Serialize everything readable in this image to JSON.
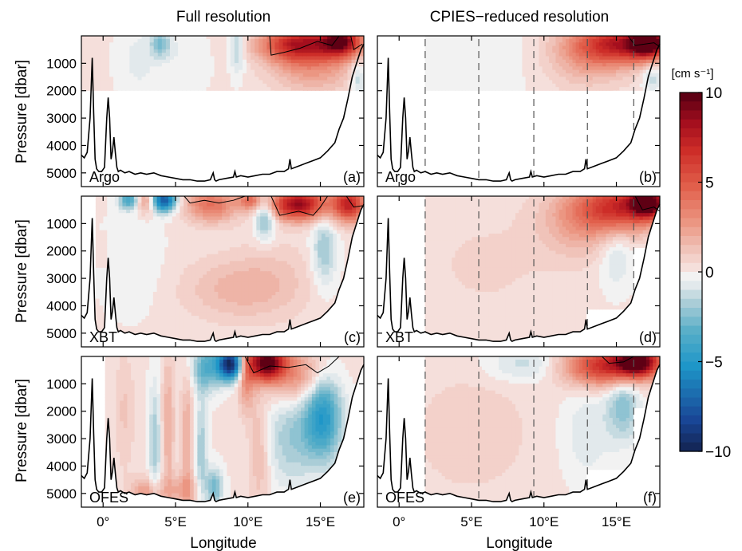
{
  "chart_data": {
    "type": "heatmap",
    "column_titles": [
      "Full resolution",
      "CPIES−reduced resolution"
    ],
    "xlabel": "Longitude",
    "ylabel": "Pressure [dbar]",
    "xlim": [
      -1.5,
      18
    ],
    "ylim": [
      5500,
      0
    ],
    "x_ticks": [
      0,
      5,
      10,
      15
    ],
    "x_tick_labels": [
      "0°",
      "5°E",
      "10°E",
      "15°E"
    ],
    "y_ticks": [
      1000,
      2000,
      3000,
      4000,
      5000
    ],
    "y_tick_labels": [
      "1000",
      "2000",
      "3000",
      "4000",
      "5000"
    ],
    "cpies_longitudes": [
      1.8,
      5.5,
      9.3,
      13.0,
      16.2
    ],
    "bottom_topography": {
      "lon": [
        -1.5,
        -1.3,
        -1.1,
        -0.9,
        -0.75,
        -0.65,
        -0.55,
        -0.45,
        -0.3,
        -0.1,
        0.1,
        0.25,
        0.35,
        0.45,
        0.55,
        0.65,
        0.75,
        0.85,
        0.95,
        1.05,
        1.2,
        1.5,
        1.8,
        2.2,
        2.6,
        3.0,
        3.5,
        4.0,
        4.5,
        5.0,
        5.5,
        6.0,
        6.5,
        7.0,
        7.4,
        7.6,
        7.7,
        7.8,
        8.0,
        8.5,
        9.0,
        9.1,
        9.2,
        9.5,
        10.0,
        10.5,
        11.0,
        11.5,
        12.0,
        12.5,
        12.8,
        12.9,
        13.0,
        13.5,
        14.0,
        14.5,
        15.0,
        15.5,
        16.0,
        16.3,
        16.6,
        16.9,
        17.2,
        17.5,
        17.8,
        18.0
      ],
      "depth": [
        4350,
        4450,
        4250,
        3000,
        800,
        2800,
        4500,
        4850,
        4950,
        4950,
        4800,
        3000,
        2250,
        3000,
        4500,
        4200,
        3700,
        4300,
        4800,
        4950,
        4900,
        5000,
        4950,
        5050,
        5000,
        5050,
        5000,
        5100,
        5150,
        5200,
        5250,
        5250,
        5300,
        5300,
        5250,
        5000,
        5250,
        5300,
        5250,
        5200,
        5150,
        4950,
        5150,
        5100,
        5150,
        5100,
        5050,
        5050,
        4950,
        4950,
        4850,
        4500,
        4850,
        4750,
        4650,
        4550,
        4450,
        4200,
        3900,
        3400,
        3000,
        2300,
        1500,
        1000,
        500,
        300
      ]
    },
    "colorbar": {
      "unit_label": "[cm s⁻¹]",
      "range": [
        -10,
        10
      ],
      "tick_labels": [
        "10",
        "5",
        "0",
        "−5",
        "−10"
      ],
      "tick_values": [
        10,
        5,
        0,
        -5,
        -10
      ]
    },
    "panels": [
      {
        "id": "a",
        "letter": "(a)",
        "tag": "Argo",
        "column": 0,
        "row": 0,
        "data_bottom": 2000,
        "contour_lines": [
          [
            [
              11.5,
              0
            ],
            [
              11.6,
              700
            ],
            [
              12.5,
              600
            ],
            [
              13.6,
              450
            ],
            [
              14.8,
              200
            ],
            [
              15.8,
              350
            ],
            [
              16.3,
              0
            ]
          ],
          [
            [
              17.1,
              0
            ],
            [
              17.3,
              500
            ],
            [
              17.9,
              300
            ]
          ]
        ],
        "blobs": [
          {
            "lon": 4.0,
            "p": 300,
            "v": -2.5,
            "sx": 0.5,
            "sy": 350
          },
          {
            "lon": 9.3,
            "p": 400,
            "v": -2.0,
            "sx": 0.35,
            "sy": 700
          },
          {
            "lon": 2.5,
            "p": 900,
            "v": -0.8,
            "sx": 1.0,
            "sy": 900
          },
          {
            "lon": 5.8,
            "p": 1000,
            "v": -0.6,
            "sx": 1.0,
            "sy": 800
          },
          {
            "lon": 13.5,
            "p": 300,
            "v": 7.0,
            "sx": 1.8,
            "sy": 450
          },
          {
            "lon": 16.5,
            "p": 200,
            "v": 8.0,
            "sx": 1.0,
            "sy": 400
          },
          {
            "lon": 14.5,
            "p": 1100,
            "v": 2.5,
            "sx": 2.0,
            "sy": 700
          },
          {
            "lon": 17.6,
            "p": 1500,
            "v": -1.8,
            "sx": 0.35,
            "sy": 500
          }
        ]
      },
      {
        "id": "b",
        "letter": "(b)",
        "tag": "Argo",
        "column": 1,
        "row": 0,
        "data_bottom": 2000,
        "contour_lines": [
          [
            [
              15.8,
              0
            ],
            [
              16.3,
              350
            ],
            [
              17.6,
              250
            ],
            [
              18.0,
              400
            ]
          ]
        ],
        "blobs": [
          {
            "lon": 15.5,
            "p": 300,
            "v": 7.0,
            "sx": 2.2,
            "sy": 500
          },
          {
            "lon": 17.2,
            "p": 250,
            "v": 8.5,
            "sx": 0.8,
            "sy": 350
          },
          {
            "lon": 13.0,
            "p": 800,
            "v": 2.0,
            "sx": 2.0,
            "sy": 800
          },
          {
            "lon": 5.5,
            "p": 800,
            "v": -0.4,
            "sx": 3.5,
            "sy": 1200
          },
          {
            "lon": 17.5,
            "p": 1500,
            "v": -1.5,
            "sx": 0.5,
            "sy": 400
          }
        ]
      },
      {
        "id": "c",
        "letter": "(c)",
        "tag": "XBT",
        "column": 0,
        "row": 1,
        "data_bottom": "topography",
        "contour_lines": [
          [
            [
              5.6,
              0
            ],
            [
              6.0,
              250
            ],
            [
              7.0,
              150
            ],
            [
              8.0,
              250
            ],
            [
              9.0,
              150
            ],
            [
              9.8,
              0
            ]
          ],
          [
            [
              11.6,
              0
            ],
            [
              12.2,
              700
            ],
            [
              13.5,
              550
            ],
            [
              14.5,
              700
            ],
            [
              15.0,
              400
            ],
            [
              15.5,
              0
            ]
          ],
          [
            [
              16.8,
              0
            ],
            [
              17.3,
              400
            ],
            [
              17.9,
              350
            ]
          ]
        ],
        "blobs": [
          {
            "lon": 1.8,
            "p": 150,
            "v": -4.0,
            "sx": 0.5,
            "sy": 250
          },
          {
            "lon": 4.2,
            "p": 150,
            "v": -8.0,
            "sx": 0.6,
            "sy": 300
          },
          {
            "lon": 3.0,
            "p": 200,
            "v": 3.0,
            "sx": 0.5,
            "sy": 300
          },
          {
            "lon": 7.5,
            "p": 300,
            "v": 4.0,
            "sx": 1.3,
            "sy": 450
          },
          {
            "lon": 10.2,
            "p": 150,
            "v": 3.5,
            "sx": 0.6,
            "sy": 250
          },
          {
            "lon": 11.2,
            "p": 700,
            "v": -3.0,
            "sx": 0.5,
            "sy": 600
          },
          {
            "lon": 13.5,
            "p": 300,
            "v": 8.5,
            "sx": 1.4,
            "sy": 400
          },
          {
            "lon": 17.0,
            "p": 300,
            "v": 7.0,
            "sx": 0.8,
            "sy": 450
          },
          {
            "lon": 15.3,
            "p": 2000,
            "v": -2.2,
            "sx": 0.6,
            "sy": 900
          },
          {
            "lon": 9.0,
            "p": 3400,
            "v": 1.5,
            "sx": 2.5,
            "sy": 800
          },
          {
            "lon": 2.0,
            "p": 2500,
            "v": -0.6,
            "sx": 1.5,
            "sy": 1200
          },
          {
            "lon": 12.0,
            "p": 3000,
            "v": 0.8,
            "sx": 2.0,
            "sy": 1000
          }
        ]
      },
      {
        "id": "d",
        "letter": "(d)",
        "tag": "XBT",
        "column": 1,
        "row": 1,
        "data_bottom": "stepped",
        "contour_lines": [
          [
            [
              16.3,
              0
            ],
            [
              16.8,
              500
            ],
            [
              17.6,
              400
            ],
            [
              18.0,
              550
            ]
          ]
        ],
        "blobs": [
          {
            "lon": 15.5,
            "p": 400,
            "v": 6.5,
            "sx": 2.2,
            "sy": 600
          },
          {
            "lon": 17.2,
            "p": 250,
            "v": 8.0,
            "sx": 0.8,
            "sy": 350
          },
          {
            "lon": 12.5,
            "p": 1000,
            "v": 2.0,
            "sx": 2.0,
            "sy": 900
          },
          {
            "lon": 15.0,
            "p": 2200,
            "v": -1.3,
            "sx": 0.8,
            "sy": 800
          },
          {
            "lon": 6.0,
            "p": 2500,
            "v": 0.5,
            "sx": 3.5,
            "sy": 1500
          }
        ]
      },
      {
        "id": "e",
        "letter": "(e)",
        "tag": "OFES",
        "column": 0,
        "row": 2,
        "data_bottom": "topography",
        "contour_lines": [
          [
            [
              9.8,
              0
            ],
            [
              10.4,
              600
            ],
            [
              11.5,
              350
            ],
            [
              12.8,
              400
            ],
            [
              14.0,
              300
            ],
            [
              14.8,
              600
            ],
            [
              15.6,
              350
            ],
            [
              16.3,
              0
            ]
          ]
        ],
        "blobs": [
          {
            "lon": 8.8,
            "p": 300,
            "v": -10.0,
            "sx": 0.6,
            "sy": 400
          },
          {
            "lon": 7.2,
            "p": 400,
            "v": -3.5,
            "sx": 0.7,
            "sy": 600
          },
          {
            "lon": 11.3,
            "p": 250,
            "v": 10.0,
            "sx": 0.9,
            "sy": 450
          },
          {
            "lon": 9.9,
            "p": 700,
            "v": 3.0,
            "sx": 0.4,
            "sy": 900
          },
          {
            "lon": 13.5,
            "p": 700,
            "v": 3.0,
            "sx": 1.4,
            "sy": 700
          },
          {
            "lon": 15.2,
            "p": 2200,
            "v": -5.0,
            "sx": 0.9,
            "sy": 1100
          },
          {
            "lon": 13.0,
            "p": 3000,
            "v": -2.0,
            "sx": 1.2,
            "sy": 1200
          },
          {
            "lon": 4.5,
            "p": 2500,
            "v": 2.0,
            "sx": 0.3,
            "sy": 1800
          },
          {
            "lon": 3.6,
            "p": 3200,
            "v": -2.0,
            "sx": 0.3,
            "sy": 1600
          },
          {
            "lon": 5.8,
            "p": 3000,
            "v": 2.0,
            "sx": 0.3,
            "sy": 1600
          },
          {
            "lon": 6.8,
            "p": 3500,
            "v": -2.0,
            "sx": 0.3,
            "sy": 1500
          },
          {
            "lon": 7.7,
            "p": 4800,
            "v": -3.0,
            "sx": 0.4,
            "sy": 500
          },
          {
            "lon": 3.0,
            "p": 5000,
            "v": 2.5,
            "sx": 0.8,
            "sy": 400
          },
          {
            "lon": 5.5,
            "p": 4900,
            "v": 2.0,
            "sx": 0.8,
            "sy": 400
          },
          {
            "lon": 1.5,
            "p": 2000,
            "v": 1.0,
            "sx": 0.5,
            "sy": 1500
          },
          {
            "lon": 10.8,
            "p": 3500,
            "v": 1.5,
            "sx": 0.5,
            "sy": 1500
          }
        ]
      },
      {
        "id": "f",
        "letter": "(f)",
        "tag": "OFES",
        "column": 1,
        "row": 2,
        "data_bottom": "stepped",
        "contour_lines": [
          [
            [
              14.0,
              0
            ],
            [
              14.5,
              250
            ],
            [
              15.5,
              200
            ],
            [
              16.2,
              0
            ]
          ]
        ],
        "blobs": [
          {
            "lon": 14.5,
            "p": 350,
            "v": 7.0,
            "sx": 2.2,
            "sy": 500
          },
          {
            "lon": 16.5,
            "p": 200,
            "v": 8.0,
            "sx": 1.0,
            "sy": 350
          },
          {
            "lon": 9.0,
            "p": 300,
            "v": -1.5,
            "sx": 2.0,
            "sy": 450
          },
          {
            "lon": 15.5,
            "p": 1800,
            "v": -2.5,
            "sx": 0.8,
            "sy": 900
          },
          {
            "lon": 13.0,
            "p": 2800,
            "v": -1.0,
            "sx": 1.2,
            "sy": 1200
          },
          {
            "lon": 5.0,
            "p": 2800,
            "v": 0.8,
            "sx": 3.0,
            "sy": 1600
          }
        ]
      }
    ]
  }
}
